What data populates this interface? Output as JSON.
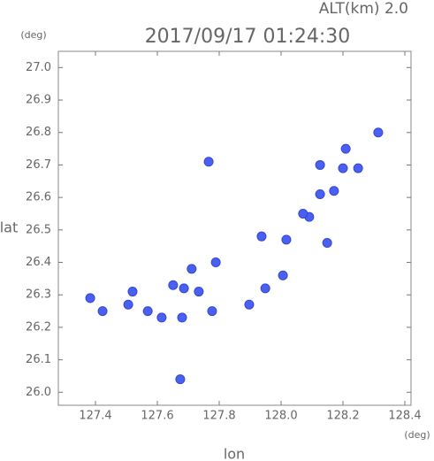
{
  "chart_data": {
    "type": "scatter",
    "title": "2017/09/17 01:24:30",
    "subtitle": "ALT(km) 2.0",
    "x_label": "lon",
    "y_label": "lat",
    "x_unit": "(deg)",
    "y_unit": "(deg)",
    "x": [
      128.314,
      128.209,
      128.249,
      128.2,
      128.126,
      128.171,
      128.126,
      128.091,
      128.071,
      128.017,
      128.149,
      127.937,
      127.789,
      127.711,
      127.734,
      127.686,
      127.651,
      127.52,
      127.569,
      127.614,
      127.506,
      127.68,
      127.777,
      127.897,
      127.949,
      128.006,
      127.383,
      127.423,
      127.674,
      127.766
    ],
    "y": [
      26.8,
      26.75,
      26.69,
      26.69,
      26.7,
      26.62,
      26.61,
      26.54,
      26.55,
      26.47,
      26.46,
      26.48,
      26.4,
      26.38,
      26.31,
      26.32,
      26.33,
      26.31,
      26.25,
      26.23,
      26.27,
      26.23,
      26.25,
      26.27,
      26.32,
      26.36,
      26.29,
      26.25,
      26.04,
      26.71
    ],
    "color": "#4a60f2",
    "xlim": [
      127.28,
      128.42
    ],
    "ylim": [
      25.96,
      27.05
    ],
    "xticks": [
      127.4,
      127.6,
      127.8,
      {
        "value": 128.0,
        "label": "128.0"
      },
      128.2,
      128.4
    ],
    "yticks": [
      {
        "value": 26.0,
        "label": "26.0"
      },
      26.1,
      26.2,
      26.3,
      26.4,
      26.5,
      26.6,
      26.7,
      26.8,
      26.9,
      {
        "value": 27.0,
        "label": "27.0"
      }
    ],
    "grid": false
  }
}
